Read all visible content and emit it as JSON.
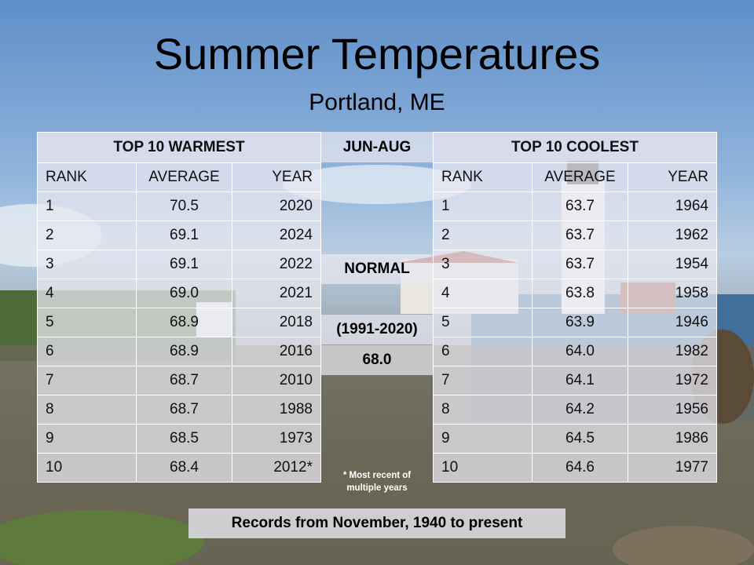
{
  "title": "Summer Temperatures",
  "subtitle": "Portland, ME",
  "warmest": {
    "header": "TOP 10 WARMEST",
    "columns": [
      "RANK",
      "AVERAGE",
      "YEAR"
    ],
    "rows": [
      [
        "1",
        "70.5",
        "2020"
      ],
      [
        "2",
        "69.1",
        "2024"
      ],
      [
        "3",
        "69.1",
        "2022"
      ],
      [
        "4",
        "69.0",
        "2021"
      ],
      [
        "5",
        "68.9",
        "2018"
      ],
      [
        "6",
        "68.9",
        "2016"
      ],
      [
        "7",
        "68.7",
        "2010"
      ],
      [
        "8",
        "68.7",
        "1988"
      ],
      [
        "9",
        "68.5",
        "1973"
      ],
      [
        "10",
        "68.4",
        "2012*"
      ]
    ]
  },
  "coolest": {
    "header": "TOP 10 COOLEST",
    "columns": [
      "RANK",
      "AVERAGE",
      "YEAR"
    ],
    "rows": [
      [
        "1",
        "63.7",
        "1964"
      ],
      [
        "2",
        "63.7",
        "1962"
      ],
      [
        "3",
        "63.7",
        "1954"
      ],
      [
        "4",
        "63.8",
        "1958"
      ],
      [
        "5",
        "63.9",
        "1946"
      ],
      [
        "6",
        "64.0",
        "1982"
      ],
      [
        "7",
        "64.1",
        "1972"
      ],
      [
        "8",
        "64.2",
        "1956"
      ],
      [
        "9",
        "64.5",
        "1986"
      ],
      [
        "10",
        "64.6",
        "1977"
      ]
    ]
  },
  "middle": {
    "period": "JUN-AUG",
    "normal_label": "NORMAL",
    "normal_range": "(1991-2020)",
    "normal_value": "68.0",
    "footnote_line1": "* Most recent of",
    "footnote_line2": "multiple years"
  },
  "footer": "Records from November, 1940 to present"
}
